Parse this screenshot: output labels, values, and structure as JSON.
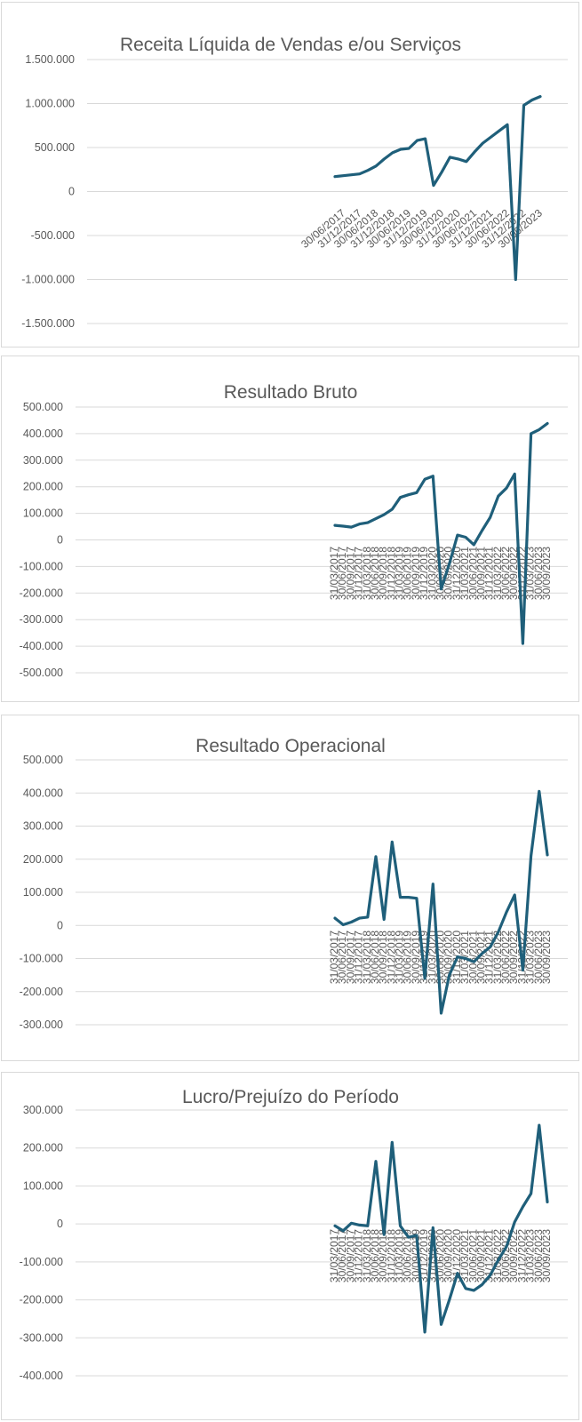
{
  "chart_data": [
    {
      "type": "line",
      "title": "Receita Líquida de Vendas e/ou Serviços",
      "xlabel": "",
      "ylabel": "",
      "ylim": [
        -1500000,
        1500000
      ],
      "yticks": [
        "1.500.000",
        "1.000.000",
        "500.000",
        "0",
        "-500.000",
        "-1.000.000",
        "-1.500.000"
      ],
      "ytick_values": [
        1500000,
        1000000,
        500000,
        0,
        -500000,
        -1000000,
        -1500000
      ],
      "x_tick_labels": [
        "30/06/2017",
        "31/12/2017",
        "30/06/2018",
        "31/12/2018",
        "30/06/2019",
        "31/12/2019",
        "30/06/2020",
        "31/12/2020",
        "30/06/2021",
        "31/12/2021",
        "30/06/2022",
        "31/12/2022",
        "30/06/2023"
      ],
      "x_tick_every": 2,
      "x_tick_offset": 1,
      "x_tick_rotation": -40,
      "grid": true,
      "color": "#1f5f7a",
      "series": [
        {
          "values": [
            170000,
            180000,
            190000,
            200000,
            240000,
            290000,
            370000,
            440000,
            480000,
            490000,
            580000,
            600000,
            70000,
            220000,
            390000,
            370000,
            340000,
            450000,
            550000,
            620000,
            690000,
            760000,
            -1000000,
            980000,
            1040000,
            1080000
          ]
        }
      ]
    },
    {
      "type": "line",
      "title": "Resultado Bruto",
      "xlabel": "",
      "ylabel": "",
      "ylim": [
        -500000,
        500000
      ],
      "yticks": [
        "500.000",
        "400.000",
        "300.000",
        "200.000",
        "100.000",
        "0",
        "-100.000",
        "-200.000",
        "-300.000",
        "-400.000",
        "-500.000"
      ],
      "ytick_values": [
        500000,
        400000,
        300000,
        200000,
        100000,
        0,
        -100000,
        -200000,
        -300000,
        -400000,
        -500000
      ],
      "x_tick_labels": [
        "31/03/2017",
        "30/06/2017",
        "30/09/2017",
        "31/12/2017",
        "31/03/2018",
        "30/06/2018",
        "30/09/2018",
        "31/12/2018",
        "31/03/2019",
        "30/06/2019",
        "30/09/2019",
        "31/12/2019",
        "31/03/2020",
        "30/06/2020",
        "30/09/2020",
        "31/12/2020",
        "31/03/2021",
        "30/06/2021",
        "30/09/2021",
        "31/12/2021",
        "31/03/2022",
        "30/06/2022",
        "30/09/2022",
        "31/12/2022",
        "31/03/2023",
        "30/06/2023",
        "30/09/2023"
      ],
      "x_tick_every": 1,
      "x_tick_offset": 0,
      "x_tick_rotation": -90,
      "grid": true,
      "color": "#1f5f7a",
      "series": [
        {
          "values": [
            55000,
            52000,
            48000,
            60000,
            65000,
            80000,
            95000,
            115000,
            160000,
            170000,
            178000,
            228000,
            240000,
            -185000,
            -90000,
            18000,
            10000,
            -18000,
            35000,
            85000,
            165000,
            195000,
            248000,
            -390000,
            400000,
            415000,
            438000
          ]
        }
      ]
    },
    {
      "type": "line",
      "title": "Resultado Operacional",
      "xlabel": "",
      "ylabel": "",
      "ylim": [
        -300000,
        500000
      ],
      "yticks": [
        "500.000",
        "400.000",
        "300.000",
        "200.000",
        "100.000",
        "0",
        "-100.000",
        "-200.000",
        "-300.000"
      ],
      "ytick_values": [
        500000,
        400000,
        300000,
        200000,
        100000,
        0,
        -100000,
        -200000,
        -300000
      ],
      "x_tick_labels": [
        "31/03/2017",
        "30/06/2017",
        "30/09/2017",
        "31/12/2017",
        "31/03/2018",
        "30/06/2018",
        "30/09/2018",
        "31/12/2018",
        "31/03/2019",
        "30/06/2019",
        "30/09/2019",
        "31/12/2019",
        "31/03/2020",
        "30/06/2020",
        "30/09/2020",
        "31/12/2020",
        "31/03/2021",
        "30/06/2021",
        "30/09/2021",
        "31/12/2021",
        "31/03/2022",
        "30/06/2022",
        "30/09/2022",
        "31/12/2022",
        "31/03/2023",
        "30/06/2023",
        "30/09/2023"
      ],
      "x_tick_every": 1,
      "x_tick_offset": 0,
      "x_tick_rotation": -90,
      "grid": true,
      "color": "#1f5f7a",
      "series": [
        {
          "values": [
            22000,
            2000,
            10000,
            22000,
            25000,
            208000,
            18000,
            252000,
            85000,
            85000,
            82000,
            -160000,
            125000,
            -265000,
            -150000,
            -95000,
            -100000,
            -110000,
            -85000,
            -65000,
            -20000,
            40000,
            92000,
            -135000,
            210000,
            405000,
            213000
          ]
        }
      ]
    },
    {
      "type": "line",
      "title": "Lucro/Prejuízo do Período",
      "xlabel": "",
      "ylabel": "",
      "ylim": [
        -400000,
        300000
      ],
      "yticks": [
        "300.000",
        "200.000",
        "100.000",
        "0",
        "-100.000",
        "-200.000",
        "-300.000",
        "-400.000"
      ],
      "ytick_values": [
        300000,
        200000,
        100000,
        0,
        -100000,
        -200000,
        -300000,
        -400000
      ],
      "x_tick_labels": [
        "31/03/2017",
        "30/06/2017",
        "30/09/2017",
        "31/12/2017",
        "31/03/2018",
        "30/06/2018",
        "30/09/2018",
        "31/12/2018",
        "31/03/2019",
        "30/06/2019",
        "30/09/2019",
        "31/12/2019",
        "31/03/2020",
        "30/06/2020",
        "30/09/2020",
        "31/12/2020",
        "31/03/2021",
        "30/06/2021",
        "30/09/2021",
        "31/12/2021",
        "31/03/2022",
        "30/06/2022",
        "30/09/2022",
        "31/12/2022",
        "31/03/2023",
        "30/06/2023",
        "30/09/2023"
      ],
      "x_tick_every": 1,
      "x_tick_offset": 0,
      "x_tick_rotation": -90,
      "grid": true,
      "color": "#1f5f7a",
      "series": [
        {
          "values": [
            -5000,
            -18000,
            2000,
            -3000,
            -5000,
            165000,
            -28000,
            215000,
            -5000,
            -35000,
            -30000,
            -285000,
            -10000,
            -265000,
            -200000,
            -130000,
            -170000,
            -175000,
            -160000,
            -135000,
            -95000,
            -60000,
            5000,
            45000,
            80000,
            260000,
            58000
          ]
        }
      ]
    }
  ]
}
